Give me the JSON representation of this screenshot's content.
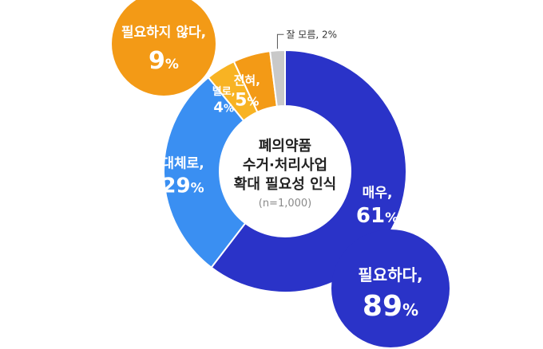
{
  "chart_data": {
    "type": "pie",
    "donut": true,
    "title_lines": [
      "폐의약품",
      "수거·처리사업",
      "확대 필요성 인식"
    ],
    "sample_note": "(n=1,000)",
    "slices": [
      {
        "name": "매우,",
        "value": 61,
        "value_text": "61",
        "color": "#2a33c8"
      },
      {
        "name": "대체로,",
        "value": 29,
        "value_text": "29",
        "color": "#3a8ff2"
      },
      {
        "name": "별로,",
        "value": 4,
        "value_text": "4",
        "color": "#f8b323"
      },
      {
        "name": "전혀,",
        "value": 5,
        "value_text": "5",
        "color": "#f39a16"
      },
      {
        "name": "잘 모름, 2%",
        "value": 2,
        "value_text": "",
        "color": "#c9c9c9"
      }
    ],
    "summary_bubbles": [
      {
        "label": "필요하지 않다,",
        "value_text": "9",
        "unit": "%",
        "color": "#f39a16"
      },
      {
        "label": "필요하다,",
        "value_text": "89",
        "unit": "%",
        "color": "#2a33c8"
      }
    ],
    "unit": "%"
  }
}
